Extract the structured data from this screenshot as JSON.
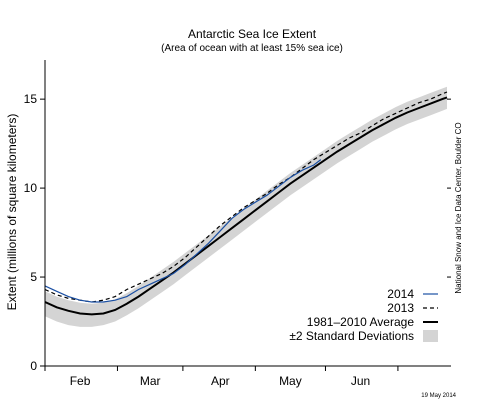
{
  "chart_data": {
    "type": "line",
    "title": "Antarctic Sea Ice Extent",
    "subtitle": "(Area of ocean with at least 15% sea ice)",
    "xlabel": "",
    "ylabel": "Extent (millions of square kilometers)",
    "xlim": [
      0,
      172
    ],
    "ylim": [
      0,
      17.2
    ],
    "y_ticks": [
      0,
      5,
      10,
      15
    ],
    "x_month_boundaries": [
      0,
      31,
      59,
      90,
      120,
      151
    ],
    "x_tick_labels": [
      {
        "label": "Feb",
        "day": 15
      },
      {
        "label": "Mar",
        "day": 45
      },
      {
        "label": "Apr",
        "day": 75
      },
      {
        "label": "May",
        "day": 105
      },
      {
        "label": "Jun",
        "day": 135
      }
    ],
    "grid": false,
    "legend_position": "bottom-right",
    "credit": "National Snow and Ice Data Center, Boulder CO",
    "date_stamp": "19 May 2014",
    "colors": {
      "series_2014": "#1a4fa3",
      "series_2013": "#000000",
      "average": "#000000",
      "band": "#d4d4d4"
    },
    "series": [
      {
        "name": "2014",
        "style": "solid-blue",
        "x": [
          0,
          5,
          10,
          15,
          20,
          25,
          30,
          35,
          40,
          45,
          50,
          55,
          60,
          65,
          70,
          75,
          80,
          85,
          90,
          95,
          100,
          105,
          110,
          115,
          118
        ],
        "values": [
          4.5,
          4.2,
          3.9,
          3.7,
          3.6,
          3.6,
          3.7,
          3.9,
          4.3,
          4.6,
          4.9,
          5.2,
          5.7,
          6.3,
          6.9,
          7.6,
          8.3,
          8.8,
          9.2,
          9.6,
          10.1,
          10.6,
          11.0,
          11.3,
          11.6
        ]
      },
      {
        "name": "2013",
        "style": "dashed-black",
        "x": [
          0,
          5,
          10,
          15,
          20,
          25,
          30,
          35,
          40,
          45,
          50,
          55,
          60,
          65,
          70,
          75,
          80,
          85,
          90,
          95,
          100,
          105,
          110,
          115,
          120,
          125,
          130,
          135,
          140,
          145,
          150,
          155,
          160,
          165,
          170,
          172
        ],
        "values": [
          4.3,
          4.0,
          3.8,
          3.7,
          3.6,
          3.7,
          3.9,
          4.3,
          4.6,
          4.9,
          5.2,
          5.6,
          6.1,
          6.7,
          7.3,
          7.9,
          8.4,
          8.9,
          9.3,
          9.7,
          10.2,
          10.6,
          11.1,
          11.6,
          12.0,
          12.4,
          12.8,
          13.1,
          13.5,
          13.9,
          14.2,
          14.5,
          14.8,
          15.0,
          15.3,
          15.4
        ]
      },
      {
        "name": "1981–2010 Average",
        "style": "solid-black",
        "x": [
          0,
          5,
          10,
          15,
          20,
          25,
          30,
          35,
          40,
          45,
          50,
          55,
          60,
          65,
          70,
          75,
          80,
          85,
          90,
          95,
          100,
          105,
          110,
          115,
          120,
          125,
          130,
          135,
          140,
          145,
          150,
          155,
          160,
          165,
          170,
          172
        ],
        "values": [
          3.6,
          3.3,
          3.1,
          2.95,
          2.9,
          2.95,
          3.15,
          3.5,
          3.9,
          4.35,
          4.8,
          5.25,
          5.75,
          6.25,
          6.75,
          7.25,
          7.75,
          8.25,
          8.75,
          9.25,
          9.75,
          10.25,
          10.7,
          11.15,
          11.6,
          12.05,
          12.45,
          12.85,
          13.25,
          13.6,
          13.95,
          14.25,
          14.5,
          14.75,
          15.0,
          15.1
        ]
      }
    ],
    "band": {
      "name": "±2 Standard Deviations",
      "x": [
        0,
        5,
        10,
        15,
        20,
        25,
        30,
        35,
        40,
        45,
        50,
        55,
        60,
        65,
        70,
        75,
        80,
        85,
        90,
        95,
        100,
        105,
        110,
        115,
        120,
        125,
        130,
        135,
        140,
        145,
        150,
        155,
        160,
        165,
        170,
        172
      ],
      "upper": [
        4.2,
        3.9,
        3.7,
        3.55,
        3.5,
        3.55,
        3.75,
        4.1,
        4.5,
        4.95,
        5.4,
        5.85,
        6.35,
        6.85,
        7.35,
        7.85,
        8.35,
        8.85,
        9.35,
        9.85,
        10.35,
        10.85,
        11.3,
        11.75,
        12.2,
        12.65,
        13.05,
        13.45,
        13.85,
        14.2,
        14.55,
        14.85,
        15.1,
        15.35,
        15.6,
        15.7
      ],
      "lower": [
        2.8,
        2.5,
        2.3,
        2.2,
        2.2,
        2.3,
        2.5,
        2.85,
        3.25,
        3.7,
        4.15,
        4.6,
        5.1,
        5.6,
        6.1,
        6.6,
        7.1,
        7.6,
        8.1,
        8.6,
        9.1,
        9.6,
        10.05,
        10.5,
        10.95,
        11.4,
        11.8,
        12.2,
        12.6,
        12.95,
        13.3,
        13.6,
        13.85,
        14.1,
        14.35,
        14.45
      ]
    }
  }
}
